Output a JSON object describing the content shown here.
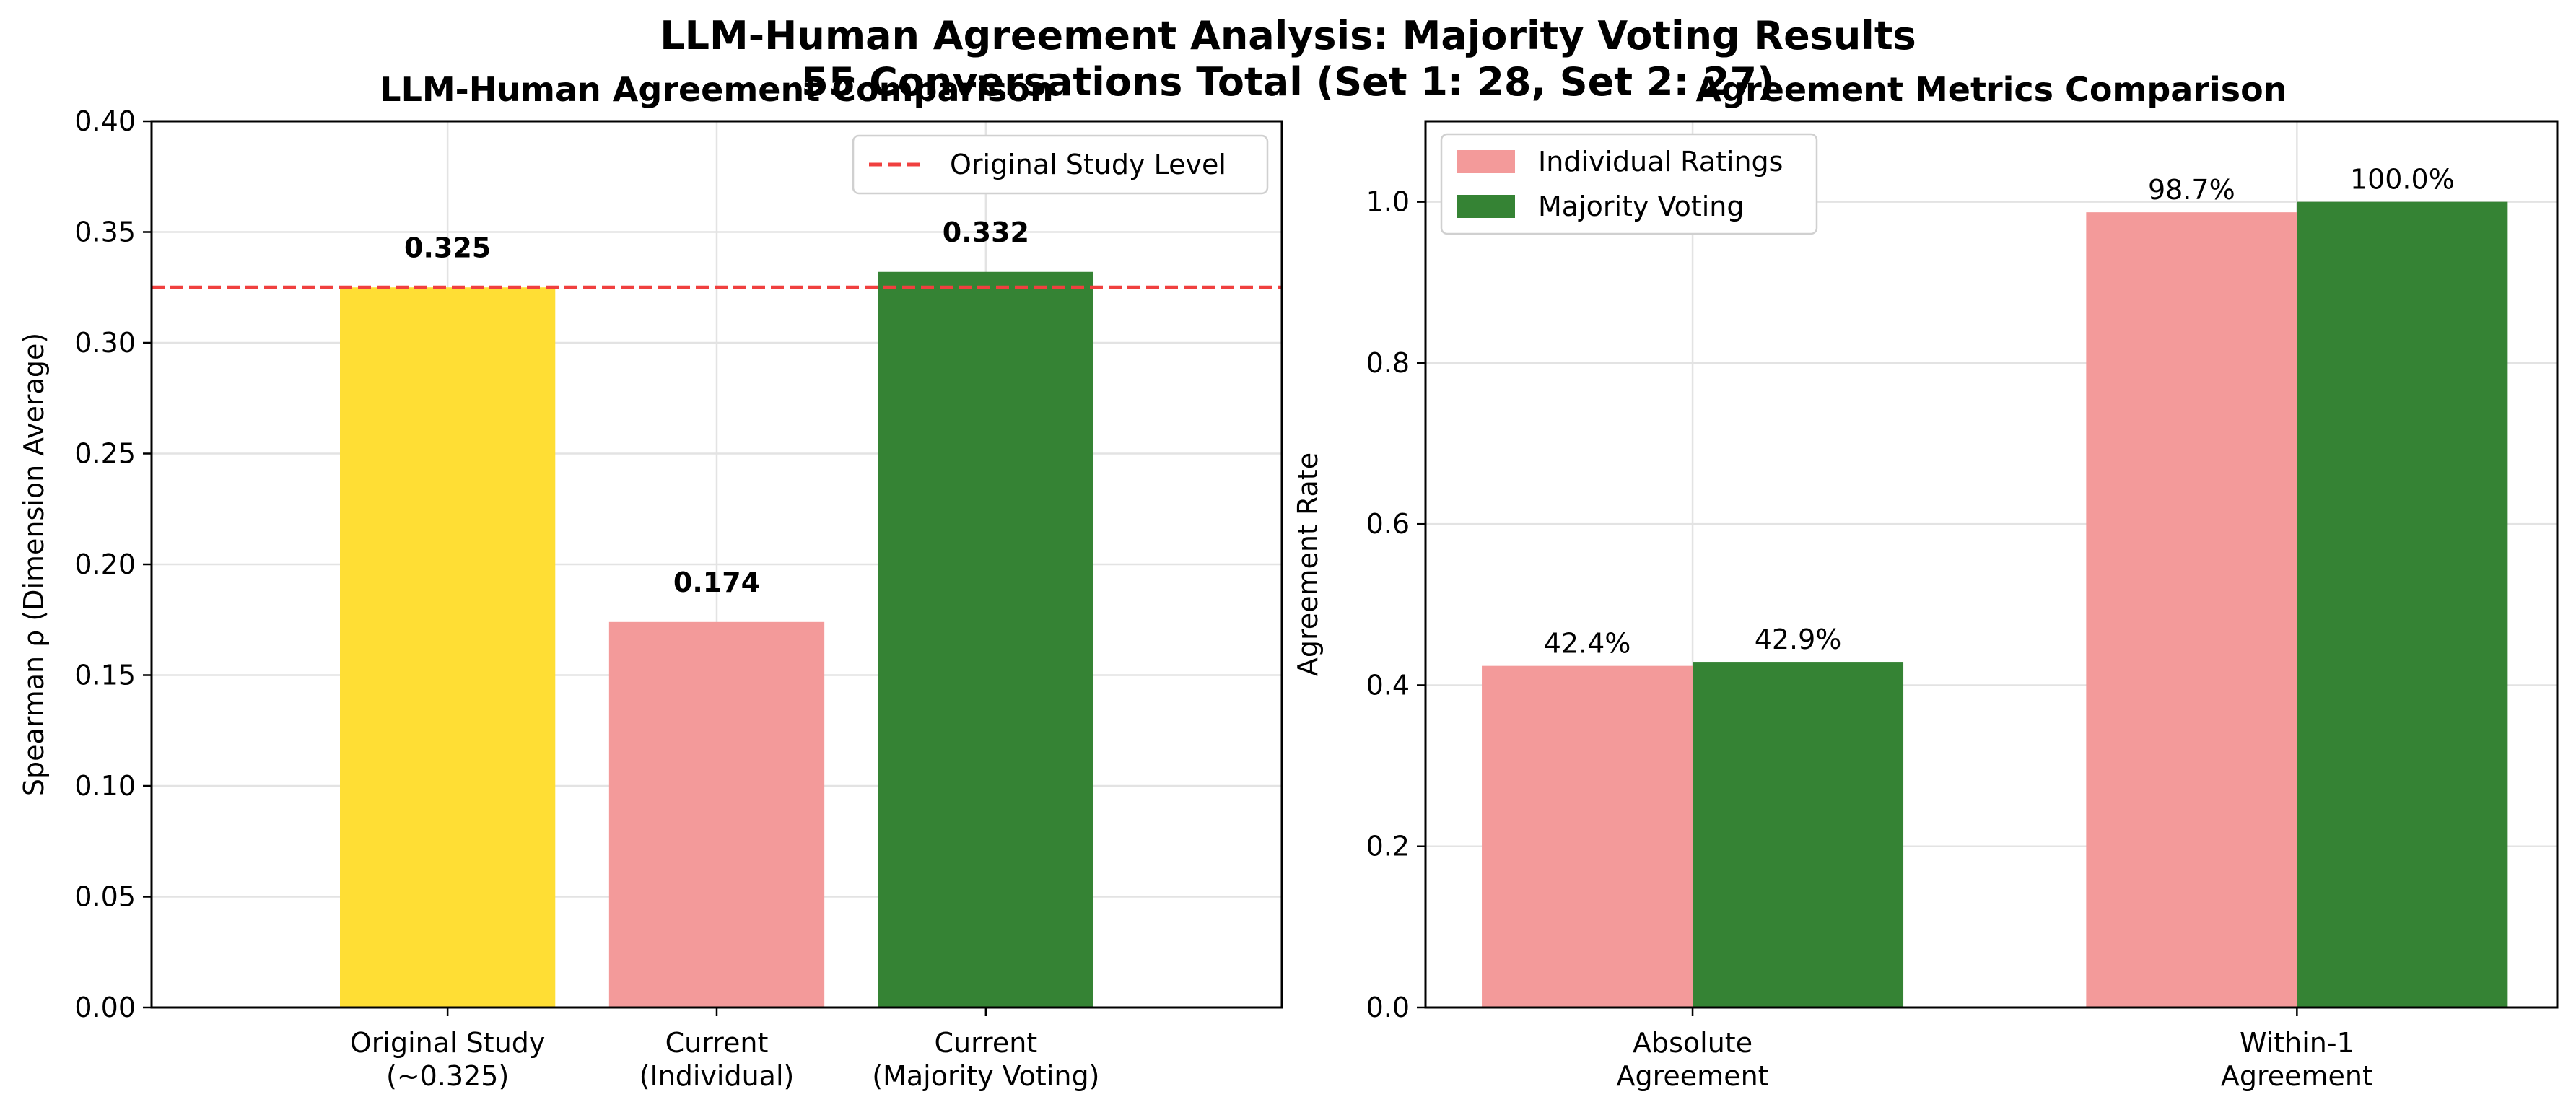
{
  "figure": {
    "title_line1": "LLM-Human Agreement Analysis: Majority Voting Results",
    "title_line2": "55 Conversations Total (Set 1: 28, Set 2: 27)"
  },
  "chart_data": [
    {
      "type": "bar",
      "title": "LLM-Human Agreement Comparison",
      "xlabel": "",
      "ylabel": "Spearman ρ (Dimension Average)",
      "categories": [
        [
          "Original Study",
          "(~0.325)"
        ],
        [
          "Current",
          "(Individual)"
        ],
        [
          "Current",
          "(Majority Voting)"
        ]
      ],
      "values": [
        0.325,
        0.174,
        0.332
      ],
      "value_labels": [
        "0.325",
        "0.174",
        "0.332"
      ],
      "bar_colors": [
        "#FFDE34",
        "#F39A9A",
        "#358334"
      ],
      "ylim": [
        0,
        0.4
      ],
      "yticks": [
        0.0,
        0.05,
        0.1,
        0.15,
        0.2,
        0.25,
        0.3,
        0.35,
        0.4
      ],
      "ytick_labels": [
        "0.00",
        "0.05",
        "0.10",
        "0.15",
        "0.20",
        "0.25",
        "0.30",
        "0.35",
        "0.40"
      ],
      "reference_line": {
        "value": 0.325,
        "label": "Original Study Level",
        "color": "#F0403F",
        "style": "dashed"
      },
      "legend": {
        "placement": "upper-right"
      },
      "grid": true
    },
    {
      "type": "bar",
      "title": "Agreement Metrics Comparison",
      "xlabel": "",
      "ylabel": "Agreement Rate",
      "categories": [
        [
          "Absolute",
          "Agreement"
        ],
        [
          "Within-1",
          "Agreement"
        ]
      ],
      "series": [
        {
          "name": "Individual Ratings",
          "values": [
            0.424,
            0.987
          ],
          "value_labels": [
            "42.4%",
            "98.7%"
          ],
          "color": "#F39A9A"
        },
        {
          "name": "Majority Voting",
          "values": [
            0.429,
            1.0
          ],
          "value_labels": [
            "42.9%",
            "100.0%"
          ],
          "color": "#358334"
        }
      ],
      "ylim": [
        0,
        1.1
      ],
      "yticks": [
        0.0,
        0.2,
        0.4,
        0.6,
        0.8,
        1.0
      ],
      "ytick_labels": [
        "0.0",
        "0.2",
        "0.4",
        "0.6",
        "0.8",
        "1.0"
      ],
      "legend": {
        "placement": "upper-left"
      },
      "grid": true
    }
  ]
}
